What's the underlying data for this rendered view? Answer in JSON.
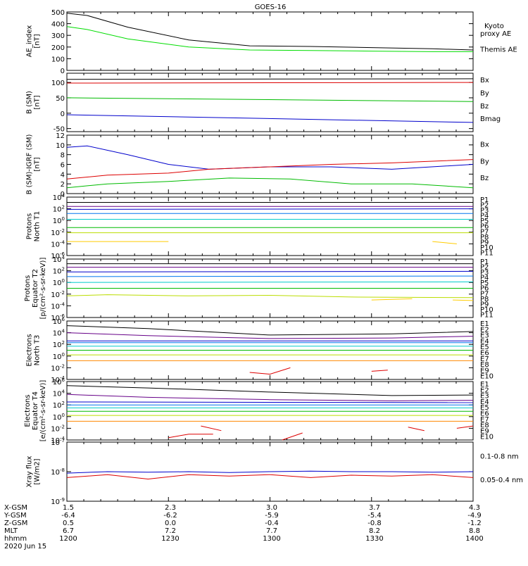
{
  "title": "GOES-16",
  "chart_data": [
    {
      "type": "line",
      "ylabel": [
        "AE_index",
        "[nT]"
      ],
      "ylim": [
        0,
        500
      ],
      "yticks": [
        "500",
        "400",
        "300",
        "200",
        "100",
        "0"
      ],
      "ytick_values": [
        500,
        400,
        300,
        200,
        100,
        0
      ],
      "legend": [
        {
          "label": "Kyoto\nproxy AE",
          "color": "#00dd00"
        },
        {
          "label": "Themis AE",
          "color": "#000000"
        }
      ],
      "series": [
        {
          "color": "#000000",
          "x": [
            0,
            0.05,
            0.15,
            0.3,
            0.45,
            0.6,
            0.75,
            0.9,
            1
          ],
          "y": [
            490,
            470,
            370,
            260,
            210,
            205,
            195,
            185,
            175
          ]
        },
        {
          "color": "#00dd00",
          "x": [
            0,
            0.05,
            0.15,
            0.3,
            0.45,
            0.6,
            0.75,
            0.9,
            1
          ],
          "y": [
            375,
            350,
            270,
            200,
            175,
            170,
            165,
            160,
            160
          ]
        }
      ]
    },
    {
      "type": "line",
      "ylabel": [
        "B (SM)",
        "[nT]"
      ],
      "ylim": [
        -60,
        130
      ],
      "yticks": [
        "100",
        "50",
        "0",
        "-50"
      ],
      "ytick_values": [
        100,
        50,
        0,
        -50
      ],
      "legend": [
        {
          "label": "Bx",
          "color": "#0000cc"
        },
        {
          "label": "By",
          "color": "#00bb00"
        },
        {
          "label": "Bz",
          "color": "#dd0000"
        },
        {
          "label": "Bmag",
          "color": "#000000"
        }
      ],
      "series": [
        {
          "color": "#000000",
          "x": [
            0,
            1
          ],
          "y": [
            110,
            112
          ]
        },
        {
          "color": "#dd0000",
          "x": [
            0,
            1
          ],
          "y": [
            98,
            100
          ]
        },
        {
          "color": "#00bb00",
          "x": [
            0,
            1
          ],
          "y": [
            50,
            38
          ]
        },
        {
          "color": "#0000cc",
          "x": [
            0,
            1
          ],
          "y": [
            -5,
            -30
          ]
        }
      ]
    },
    {
      "type": "line",
      "ylabel": [
        "B (SM)-IGRF (SM)",
        "[nT]"
      ],
      "ylim": [
        0,
        12
      ],
      "yticks": [
        "12",
        "10",
        "8",
        "6",
        "4",
        "2",
        "0"
      ],
      "ytick_values": [
        12,
        10,
        8,
        6,
        4,
        2,
        0
      ],
      "legend": [
        {
          "label": "Bx",
          "color": "#0000cc"
        },
        {
          "label": "By",
          "color": "#00bb00"
        },
        {
          "label": "Bz",
          "color": "#dd0000"
        }
      ],
      "series": [
        {
          "color": "#0000cc",
          "x": [
            0,
            0.05,
            0.15,
            0.25,
            0.35,
            0.5,
            0.65,
            0.8,
            1
          ],
          "y": [
            9.5,
            9.8,
            8,
            6,
            5,
            5.5,
            5.5,
            5,
            6
          ]
        },
        {
          "color": "#dd0000",
          "x": [
            0,
            0.1,
            0.25,
            0.35,
            0.5,
            0.65,
            0.8,
            1
          ],
          "y": [
            3,
            3.8,
            4.2,
            5,
            5.5,
            6,
            6.3,
            7
          ]
        },
        {
          "color": "#00bb00",
          "x": [
            0,
            0.1,
            0.25,
            0.4,
            0.55,
            0.7,
            0.85,
            1
          ],
          "y": [
            1.2,
            2,
            2.5,
            3.2,
            3,
            2,
            2,
            1.2
          ]
        }
      ]
    },
    {
      "type": "line",
      "ylabel": [
        "Protons",
        "North T1"
      ],
      "yscale": "log",
      "ylim": [
        -6,
        4
      ],
      "yticks": [
        "10^4",
        "10^2",
        "10^0",
        "10^-2",
        "10^-4",
        "10^-6"
      ],
      "ytick_values": [
        4,
        2,
        0,
        -2,
        -4,
        -6
      ],
      "legend": [
        {
          "label": "P1",
          "color": "#000000"
        },
        {
          "label": "P2",
          "color": "#660088"
        },
        {
          "label": "P3",
          "color": "#0000cc"
        },
        {
          "label": "P4",
          "color": "#0077ee"
        },
        {
          "label": "P5",
          "color": "#00cccc"
        },
        {
          "label": "P6",
          "color": "#00bb00"
        },
        {
          "label": "P7",
          "color": "#bbdd00"
        },
        {
          "label": "P8",
          "color": "#ffcc00"
        },
        {
          "label": "P9",
          "color": "#ff8800"
        },
        {
          "label": "P10",
          "color": "#dd0000"
        },
        {
          "label": "P11",
          "color": "#990000"
        }
      ],
      "series": [
        {
          "color": "#000000",
          "x": [
            0,
            1
          ],
          "y": [
            3.1,
            3.1
          ]
        },
        {
          "color": "#660088",
          "x": [
            0,
            1
          ],
          "y": [
            2.4,
            2.4
          ]
        },
        {
          "color": "#0000cc",
          "x": [
            0,
            1
          ],
          "y": [
            1.9,
            2.0
          ]
        },
        {
          "color": "#0077ee",
          "x": [
            0,
            1
          ],
          "y": [
            1.2,
            1.2
          ]
        },
        {
          "color": "#00cccc",
          "x": [
            0,
            1
          ],
          "y": [
            0.2,
            0.2
          ]
        },
        {
          "color": "#00bb00",
          "x": [
            0,
            1
          ],
          "y": [
            -1.2,
            -1.2
          ]
        },
        {
          "color": "#bbdd00",
          "x": [
            0,
            1
          ],
          "y": [
            -2.1,
            -2.1
          ]
        },
        {
          "color": "#ffcc00",
          "x": [
            0,
            0.25
          ],
          "y": [
            -3.6,
            -3.6
          ]
        },
        {
          "color": "#ffcc00",
          "x": [
            0.9,
            0.96
          ],
          "y": [
            -3.6,
            -4.0
          ]
        }
      ]
    },
    {
      "type": "line",
      "ylabel": [
        "Protons",
        "Equator T2",
        "[p/(cm²-s-sr-keV)]"
      ],
      "yscale": "log",
      "ylim": [
        -6,
        4
      ],
      "yticks": [
        "10^4",
        "10^2",
        "10^0",
        "10^-2",
        "10^-4",
        "10^-6"
      ],
      "ytick_values": [
        4,
        2,
        0,
        -2,
        -4,
        -6
      ],
      "legend": [
        {
          "label": "P1",
          "color": "#000000"
        },
        {
          "label": "P2",
          "color": "#660088"
        },
        {
          "label": "P3",
          "color": "#0000cc"
        },
        {
          "label": "P4",
          "color": "#0077ee"
        },
        {
          "label": "P5",
          "color": "#00cccc"
        },
        {
          "label": "P6",
          "color": "#00bb00"
        },
        {
          "label": "P7",
          "color": "#bbdd00"
        },
        {
          "label": "P8",
          "color": "#ffcc00"
        },
        {
          "label": "P9",
          "color": "#ff8800"
        },
        {
          "label": "P10",
          "color": "#dd0000"
        },
        {
          "label": "P11",
          "color": "#990000"
        }
      ],
      "series": [
        {
          "color": "#000000",
          "x": [
            0,
            1
          ],
          "y": [
            3.2,
            3.2
          ]
        },
        {
          "color": "#660088",
          "x": [
            0,
            1
          ],
          "y": [
            2.6,
            2.6
          ]
        },
        {
          "color": "#0000cc",
          "x": [
            0,
            1
          ],
          "y": [
            1.8,
            1.9
          ]
        },
        {
          "color": "#0077ee",
          "x": [
            0,
            1
          ],
          "y": [
            1.0,
            1.1
          ]
        },
        {
          "color": "#00cccc",
          "x": [
            0,
            1
          ],
          "y": [
            0,
            0.1
          ]
        },
        {
          "color": "#00bb00",
          "x": [
            0,
            1
          ],
          "y": [
            -1.0,
            -1.0
          ]
        },
        {
          "color": "#bbdd00",
          "x": [
            0,
            0.1,
            0.3,
            0.5,
            0.7,
            1
          ],
          "y": [
            -2.3,
            -2.1,
            -2.3,
            -2.2,
            -2.5,
            -2.6
          ]
        },
        {
          "color": "#ffcc00",
          "x": [
            0.75,
            0.85
          ],
          "y": [
            -3.0,
            -2.8
          ]
        },
        {
          "color": "#ffcc00",
          "x": [
            0.95,
            1
          ],
          "y": [
            -3.0,
            -3.1
          ]
        }
      ]
    },
    {
      "type": "line",
      "ylabel": [
        "Electrons",
        "North T3"
      ],
      "yscale": "log",
      "ylim": [
        -4,
        6
      ],
      "yticks": [
        "10^6",
        "10^4",
        "10^2",
        "10^0",
        "10^-2",
        "10^-4"
      ],
      "ytick_values": [
        6,
        4,
        2,
        0,
        -2,
        -4
      ],
      "legend": [
        {
          "label": "E1",
          "color": "#000000"
        },
        {
          "label": "E2",
          "color": "#660088"
        },
        {
          "label": "E3",
          "color": "#0000cc"
        },
        {
          "label": "E4",
          "color": "#0077ee"
        },
        {
          "label": "E5",
          "color": "#00cccc"
        },
        {
          "label": "E6",
          "color": "#00bb00"
        },
        {
          "label": "E7",
          "color": "#bbdd00"
        },
        {
          "label": "E8",
          "color": "#ff8800"
        },
        {
          "label": "E9",
          "color": "#dd0000"
        },
        {
          "label": "E10",
          "color": "#990000"
        }
      ],
      "series": [
        {
          "color": "#000000",
          "x": [
            0,
            0.2,
            0.5,
            0.8,
            1
          ],
          "y": [
            5.2,
            4.7,
            3.6,
            3.8,
            4.2
          ]
        },
        {
          "color": "#660088",
          "x": [
            0,
            0.2,
            0.5,
            0.8,
            1
          ],
          "y": [
            4.0,
            3.5,
            3.0,
            3.1,
            3.4
          ]
        },
        {
          "color": "#0000cc",
          "x": [
            0,
            1
          ],
          "y": [
            2.6,
            2.6
          ]
        },
        {
          "color": "#0077ee",
          "x": [
            0,
            1
          ],
          "y": [
            2.3,
            2.3
          ]
        },
        {
          "color": "#00cccc",
          "x": [
            0,
            1
          ],
          "y": [
            1.7,
            1.7
          ]
        },
        {
          "color": "#00bb00",
          "x": [
            0,
            1
          ],
          "y": [
            1.0,
            1.0
          ]
        },
        {
          "color": "#bbdd00",
          "x": [
            0,
            1
          ],
          "y": [
            0.2,
            0.2
          ]
        },
        {
          "color": "#ff8800",
          "x": [
            0,
            1
          ],
          "y": [
            -0.8,
            -0.8
          ]
        },
        {
          "color": "#dd0000",
          "x": [
            0.45,
            0.5,
            0.55
          ],
          "y": [
            -2.8,
            -3.1,
            -2.0
          ]
        },
        {
          "color": "#dd0000",
          "x": [
            0.75,
            0.79
          ],
          "y": [
            -2.6,
            -2.4
          ]
        }
      ]
    },
    {
      "type": "line",
      "ylabel": [
        "Electrons",
        "Equator T4",
        "[e/(cm²-s-sr-keV)]"
      ],
      "yscale": "log",
      "ylim": [
        -4,
        6
      ],
      "yticks": [
        "10^6",
        "10^4",
        "10^2",
        "10^0",
        "10^-2",
        "10^-4"
      ],
      "ytick_values": [
        6,
        4,
        2,
        0,
        -2,
        -4
      ],
      "legend": [
        {
          "label": "E1",
          "color": "#000000"
        },
        {
          "label": "E2",
          "color": "#660088"
        },
        {
          "label": "E3",
          "color": "#0000cc"
        },
        {
          "label": "E4",
          "color": "#0077ee"
        },
        {
          "label": "E5",
          "color": "#00cccc"
        },
        {
          "label": "E6",
          "color": "#00bb00"
        },
        {
          "label": "E7",
          "color": "#bbdd00"
        },
        {
          "label": "E8",
          "color": "#ff8800"
        },
        {
          "label": "E9",
          "color": "#dd0000"
        },
        {
          "label": "E10",
          "color": "#990000"
        }
      ],
      "series": [
        {
          "color": "#000000",
          "x": [
            0,
            0.2,
            0.5,
            0.8,
            1
          ],
          "y": [
            5.3,
            4.9,
            4.2,
            3.6,
            3.7
          ]
        },
        {
          "color": "#660088",
          "x": [
            0,
            0.2,
            0.5,
            0.8,
            1
          ],
          "y": [
            3.8,
            3.3,
            2.9,
            2.7,
            2.8
          ]
        },
        {
          "color": "#0000cc",
          "x": [
            0,
            1
          ],
          "y": [
            2.5,
            2.4
          ]
        },
        {
          "color": "#0077ee",
          "x": [
            0,
            1
          ],
          "y": [
            2.0,
            2.0
          ]
        },
        {
          "color": "#00cccc",
          "x": [
            0,
            1
          ],
          "y": [
            1.5,
            1.5
          ]
        },
        {
          "color": "#00bb00",
          "x": [
            0,
            1
          ],
          "y": [
            0.9,
            0.9
          ]
        },
        {
          "color": "#bbdd00",
          "x": [
            0,
            1
          ],
          "y": [
            0.2,
            0.2
          ]
        },
        {
          "color": "#ff8800",
          "x": [
            0,
            1
          ],
          "y": [
            -0.8,
            -0.8
          ]
        },
        {
          "color": "#dd0000",
          "x": [
            0.25,
            0.3,
            0.36
          ],
          "y": [
            -3.6,
            -3.0,
            -3.0
          ]
        },
        {
          "color": "#dd0000",
          "x": [
            0.33,
            0.38
          ],
          "y": [
            -1.6,
            -2.4
          ]
        },
        {
          "color": "#dd0000",
          "x": [
            0.53,
            0.58
          ],
          "y": [
            -4.0,
            -2.8
          ]
        },
        {
          "color": "#dd0000",
          "x": [
            0.84,
            0.88
          ],
          "y": [
            -1.8,
            -2.4
          ]
        },
        {
          "color": "#dd0000",
          "x": [
            0.96,
            1
          ],
          "y": [
            -2.0,
            -1.6
          ]
        }
      ]
    },
    {
      "type": "line",
      "ylabel": [
        "Xray flux",
        "[W/m2]"
      ],
      "yscale": "log",
      "ylim": [
        -9,
        -7
      ],
      "yticks": [
        "10^-7",
        "10^-8",
        "10^-9"
      ],
      "ytick_values": [
        -7,
        -8,
        -9
      ],
      "legend": [
        {
          "label": "0.1-0.8 nm",
          "color": "#dd0000"
        },
        {
          "label": "0.05-0.4 nm",
          "color": "#0000cc"
        }
      ],
      "series": [
        {
          "color": "#0000cc",
          "x": [
            0,
            0.1,
            0.2,
            0.3,
            0.4,
            0.5,
            0.6,
            0.7,
            0.8,
            0.9,
            1
          ],
          "y": [
            -8.05,
            -8.0,
            -8.02,
            -8.0,
            -8.03,
            -8.0,
            -7.98,
            -8.0,
            -8.0,
            -8.02,
            -8.0
          ]
        },
        {
          "color": "#dd0000",
          "x": [
            0,
            0.1,
            0.2,
            0.3,
            0.4,
            0.5,
            0.6,
            0.7,
            0.8,
            0.9,
            1
          ],
          "y": [
            -8.2,
            -8.1,
            -8.25,
            -8.1,
            -8.15,
            -8.1,
            -8.2,
            -8.12,
            -8.15,
            -8.1,
            -8.2
          ]
        }
      ]
    }
  ],
  "footer": {
    "rows": [
      {
        "label": "X-GSM",
        "values": [
          "1.5",
          "2.3",
          "3.0",
          "3.7",
          "4.3"
        ]
      },
      {
        "label": "Y-GSM",
        "values": [
          "-6.4",
          "-6.2",
          "-5.9",
          "-5.4",
          "-4.9"
        ]
      },
      {
        "label": "Z-GSM",
        "values": [
          "0.5",
          "0.0",
          "-0.4",
          "-0.8",
          "-1.2"
        ]
      },
      {
        "label": "MLT",
        "values": [
          "6.7",
          "7.2",
          "7.7",
          "8.2",
          "8.8"
        ]
      },
      {
        "label": "hhmm",
        "values": [
          "1200",
          "1230",
          "1300",
          "1330",
          "1400"
        ]
      }
    ],
    "date": "2020 Jun 15"
  }
}
